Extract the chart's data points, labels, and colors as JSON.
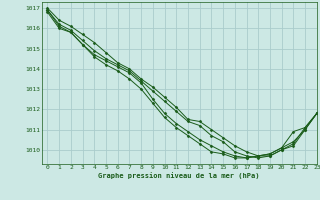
{
  "background_color": "#cce8e4",
  "grid_color": "#aacccc",
  "line_color": "#1a5c1a",
  "marker_color": "#1a5c1a",
  "title": "Graphe pression niveau de la mer (hPa)",
  "xlim": [
    -0.5,
    23
  ],
  "ylim": [
    1009.3,
    1017.3
  ],
  "yticks": [
    1010,
    1011,
    1012,
    1013,
    1014,
    1015,
    1016,
    1017
  ],
  "xticks": [
    0,
    1,
    2,
    3,
    4,
    5,
    6,
    7,
    8,
    9,
    10,
    11,
    12,
    13,
    14,
    15,
    16,
    17,
    18,
    19,
    20,
    21,
    22,
    23
  ],
  "series": [
    [
      1017.0,
      1016.4,
      1016.1,
      1015.7,
      1015.3,
      1014.8,
      1014.3,
      1014.0,
      1013.5,
      1013.1,
      1012.6,
      1012.1,
      1011.5,
      1011.4,
      1011.0,
      1010.6,
      1010.2,
      1009.9,
      1009.7,
      1009.7,
      1010.0,
      1010.2,
      1011.0,
      1011.8
    ],
    [
      1016.9,
      1016.2,
      1015.9,
      1015.4,
      1014.9,
      1014.5,
      1014.2,
      1013.9,
      1013.4,
      1012.9,
      1012.4,
      1011.9,
      1011.4,
      1011.2,
      1010.7,
      1010.4,
      1009.9,
      1009.7,
      1009.6,
      1009.7,
      1010.0,
      1010.3,
      1011.1,
      1011.8
    ],
    [
      1016.9,
      1016.1,
      1015.8,
      1015.2,
      1014.7,
      1014.4,
      1014.1,
      1013.8,
      1013.3,
      1012.5,
      1011.8,
      1011.3,
      1010.9,
      1010.5,
      1010.2,
      1009.9,
      1009.7,
      1009.6,
      1009.7,
      1009.8,
      1010.1,
      1010.4,
      1011.0,
      1011.8
    ],
    [
      1016.8,
      1016.0,
      1015.8,
      1015.2,
      1014.6,
      1014.2,
      1013.9,
      1013.5,
      1013.0,
      1012.3,
      1011.6,
      1011.1,
      1010.7,
      1010.3,
      1009.9,
      1009.8,
      1009.6,
      1009.6,
      1009.7,
      1009.8,
      1010.1,
      1010.9,
      1011.1,
      1011.8
    ]
  ]
}
